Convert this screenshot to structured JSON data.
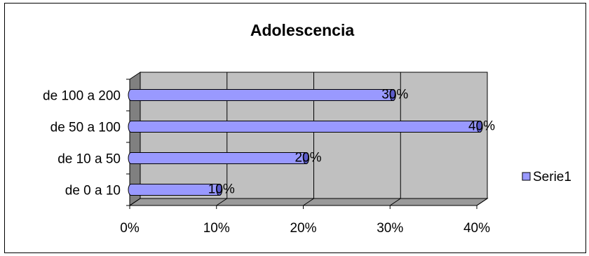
{
  "chart_data": {
    "type": "bar",
    "orientation": "horizontal",
    "three_d": true,
    "title": "Adolescencia",
    "categories": [
      "de 0 a 10",
      "de 10 a 50",
      "de 50 a 100",
      "de 100 a 200"
    ],
    "series": [
      {
        "name": "Serie1",
        "values": [
          10,
          20,
          40,
          30
        ],
        "data_labels": [
          "10%",
          "20%",
          "40%",
          "30%"
        ]
      }
    ],
    "xlim": [
      0,
      40
    ],
    "x_ticks": [
      "0%",
      "10%",
      "20%",
      "30%",
      "40%"
    ],
    "grid": true,
    "legend_position": "right",
    "colors": {
      "bar": "#9999ff",
      "bar_dark": "#5c5cc9",
      "plot_wall": "#c0c0c0",
      "plot_side": "#808080",
      "plot_floor": "#9a9a9a",
      "gridline": "#000000"
    }
  }
}
